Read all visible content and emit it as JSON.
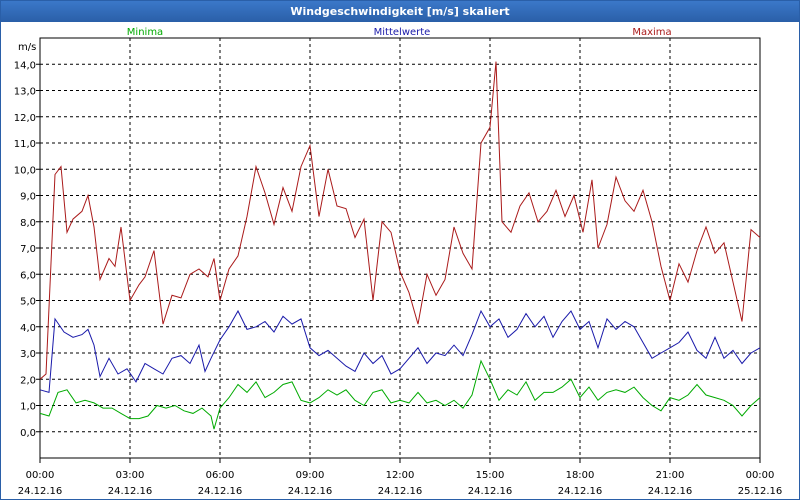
{
  "chart_data": {
    "type": "line",
    "title": "Windgeschwindigkeit [m/s] skaliert",
    "ylabel": "m/s",
    "ylim": [
      -1.0,
      15.0
    ],
    "yticks": [
      "0,0",
      "1,0",
      "2,0",
      "3,0",
      "4,0",
      "5,0",
      "6,0",
      "7,0",
      "8,0",
      "9,0",
      "10,0",
      "11,0",
      "12,0",
      "13,0",
      "14,0"
    ],
    "xlim": [
      0,
      24
    ],
    "xticks": [
      {
        "hours": 0,
        "time": "00:00",
        "date": "24.12.16"
      },
      {
        "hours": 3,
        "time": "03:00",
        "date": "24.12.16"
      },
      {
        "hours": 6,
        "time": "06:00",
        "date": "24.12.16"
      },
      {
        "hours": 9,
        "time": "09:00",
        "date": "24.12.16"
      },
      {
        "hours": 12,
        "time": "12:00",
        "date": "24.12.16"
      },
      {
        "hours": 15,
        "time": "15:00",
        "date": "24.12.16"
      },
      {
        "hours": 18,
        "time": "18:00",
        "date": "24.12.16"
      },
      {
        "hours": 21,
        "time": "21:00",
        "date": "24.12.16"
      },
      {
        "hours": 24,
        "time": "00:00",
        "date": "25.12.16"
      }
    ],
    "grid": true,
    "series": [
      {
        "name": "Minima",
        "color": "#00aa00",
        "points": [
          [
            0,
            0.7
          ],
          [
            0.3,
            0.6
          ],
          [
            0.6,
            1.5
          ],
          [
            0.9,
            1.6
          ],
          [
            1.2,
            1.1
          ],
          [
            1.5,
            1.2
          ],
          [
            1.8,
            1.1
          ],
          [
            2.1,
            0.9
          ],
          [
            2.4,
            0.9
          ],
          [
            2.7,
            0.7
          ],
          [
            3.0,
            0.5
          ],
          [
            3.3,
            0.5
          ],
          [
            3.6,
            0.6
          ],
          [
            3.9,
            1.0
          ],
          [
            4.2,
            0.9
          ],
          [
            4.5,
            1.0
          ],
          [
            4.8,
            0.8
          ],
          [
            5.1,
            0.7
          ],
          [
            5.4,
            0.9
          ],
          [
            5.7,
            0.6
          ],
          [
            5.8,
            0.1
          ],
          [
            6.0,
            0.9
          ],
          [
            6.3,
            1.3
          ],
          [
            6.6,
            1.8
          ],
          [
            6.9,
            1.5
          ],
          [
            7.2,
            1.9
          ],
          [
            7.5,
            1.3
          ],
          [
            7.8,
            1.5
          ],
          [
            8.1,
            1.8
          ],
          [
            8.4,
            1.9
          ],
          [
            8.7,
            1.2
          ],
          [
            9.0,
            1.1
          ],
          [
            9.3,
            1.3
          ],
          [
            9.6,
            1.6
          ],
          [
            9.9,
            1.4
          ],
          [
            10.2,
            1.6
          ],
          [
            10.5,
            1.2
          ],
          [
            10.8,
            1.0
          ],
          [
            11.1,
            1.5
          ],
          [
            11.4,
            1.6
          ],
          [
            11.7,
            1.1
          ],
          [
            12.0,
            1.2
          ],
          [
            12.3,
            1.1
          ],
          [
            12.6,
            1.5
          ],
          [
            12.9,
            1.1
          ],
          [
            13.2,
            1.2
          ],
          [
            13.5,
            1.0
          ],
          [
            13.8,
            1.2
          ],
          [
            14.1,
            0.9
          ],
          [
            14.4,
            1.4
          ],
          [
            14.7,
            2.7
          ],
          [
            15.0,
            2.0
          ],
          [
            15.3,
            1.2
          ],
          [
            15.6,
            1.6
          ],
          [
            15.9,
            1.4
          ],
          [
            16.2,
            1.9
          ],
          [
            16.5,
            1.2
          ],
          [
            16.8,
            1.5
          ],
          [
            17.1,
            1.5
          ],
          [
            17.4,
            1.7
          ],
          [
            17.7,
            2.0
          ],
          [
            18.0,
            1.3
          ],
          [
            18.3,
            1.7
          ],
          [
            18.6,
            1.2
          ],
          [
            18.9,
            1.5
          ],
          [
            19.2,
            1.6
          ],
          [
            19.5,
            1.5
          ],
          [
            19.8,
            1.7
          ],
          [
            20.1,
            1.3
          ],
          [
            20.4,
            1.0
          ],
          [
            20.7,
            0.8
          ],
          [
            21.0,
            1.3
          ],
          [
            21.3,
            1.2
          ],
          [
            21.6,
            1.4
          ],
          [
            21.9,
            1.8
          ],
          [
            22.2,
            1.4
          ],
          [
            22.5,
            1.3
          ],
          [
            22.8,
            1.2
          ],
          [
            23.1,
            1.0
          ],
          [
            23.4,
            0.6
          ],
          [
            23.7,
            1.0
          ],
          [
            24.0,
            1.3
          ]
        ]
      },
      {
        "name": "Mittelwerte",
        "color": "#1a1aaa",
        "points": [
          [
            0,
            1.6
          ],
          [
            0.3,
            1.5
          ],
          [
            0.5,
            4.3
          ],
          [
            0.8,
            3.8
          ],
          [
            1.1,
            3.6
          ],
          [
            1.4,
            3.7
          ],
          [
            1.6,
            3.9
          ],
          [
            1.8,
            3.3
          ],
          [
            2.0,
            2.1
          ],
          [
            2.3,
            2.8
          ],
          [
            2.6,
            2.2
          ],
          [
            2.9,
            2.4
          ],
          [
            3.2,
            1.9
          ],
          [
            3.5,
            2.6
          ],
          [
            3.8,
            2.4
          ],
          [
            4.1,
            2.2
          ],
          [
            4.4,
            2.8
          ],
          [
            4.7,
            2.9
          ],
          [
            5.0,
            2.6
          ],
          [
            5.3,
            3.3
          ],
          [
            5.5,
            2.3
          ],
          [
            5.7,
            2.8
          ],
          [
            6.0,
            3.5
          ],
          [
            6.3,
            4.0
          ],
          [
            6.6,
            4.6
          ],
          [
            6.9,
            3.9
          ],
          [
            7.2,
            4.0
          ],
          [
            7.5,
            4.2
          ],
          [
            7.8,
            3.8
          ],
          [
            8.1,
            4.4
          ],
          [
            8.4,
            4.1
          ],
          [
            8.7,
            4.3
          ],
          [
            9.0,
            3.2
          ],
          [
            9.3,
            2.9
          ],
          [
            9.6,
            3.1
          ],
          [
            9.9,
            2.8
          ],
          [
            10.2,
            2.5
          ],
          [
            10.5,
            2.3
          ],
          [
            10.8,
            3.0
          ],
          [
            11.1,
            2.6
          ],
          [
            11.4,
            2.9
          ],
          [
            11.7,
            2.2
          ],
          [
            12.0,
            2.4
          ],
          [
            12.3,
            2.8
          ],
          [
            12.6,
            3.2
          ],
          [
            12.9,
            2.6
          ],
          [
            13.2,
            3.0
          ],
          [
            13.5,
            2.9
          ],
          [
            13.8,
            3.3
          ],
          [
            14.1,
            2.9
          ],
          [
            14.4,
            3.7
          ],
          [
            14.7,
            4.6
          ],
          [
            15.0,
            4.0
          ],
          [
            15.3,
            4.3
          ],
          [
            15.6,
            3.6
          ],
          [
            15.9,
            3.9
          ],
          [
            16.2,
            4.5
          ],
          [
            16.5,
            4.0
          ],
          [
            16.8,
            4.4
          ],
          [
            17.1,
            3.6
          ],
          [
            17.4,
            4.2
          ],
          [
            17.7,
            4.6
          ],
          [
            18.0,
            3.9
          ],
          [
            18.3,
            4.2
          ],
          [
            18.6,
            3.2
          ],
          [
            18.9,
            4.3
          ],
          [
            19.2,
            3.9
          ],
          [
            19.5,
            4.2
          ],
          [
            19.8,
            4.0
          ],
          [
            20.1,
            3.4
          ],
          [
            20.4,
            2.8
          ],
          [
            20.7,
            3.0
          ],
          [
            21.0,
            3.2
          ],
          [
            21.3,
            3.4
          ],
          [
            21.6,
            3.8
          ],
          [
            21.9,
            3.1
          ],
          [
            22.2,
            2.8
          ],
          [
            22.5,
            3.6
          ],
          [
            22.8,
            2.8
          ],
          [
            23.1,
            3.1
          ],
          [
            23.4,
            2.6
          ],
          [
            23.7,
            3.0
          ],
          [
            24.0,
            3.2
          ]
        ]
      },
      {
        "name": "Maxima",
        "color": "#aa1a1a",
        "points": [
          [
            0,
            2.0
          ],
          [
            0.2,
            2.2
          ],
          [
            0.5,
            9.8
          ],
          [
            0.7,
            10.1
          ],
          [
            0.9,
            7.6
          ],
          [
            1.1,
            8.1
          ],
          [
            1.4,
            8.4
          ],
          [
            1.6,
            9.0
          ],
          [
            1.8,
            7.8
          ],
          [
            2.0,
            5.8
          ],
          [
            2.3,
            6.6
          ],
          [
            2.5,
            6.3
          ],
          [
            2.7,
            7.8
          ],
          [
            3.0,
            5.0
          ],
          [
            3.3,
            5.6
          ],
          [
            3.5,
            5.9
          ],
          [
            3.8,
            6.9
          ],
          [
            4.1,
            4.1
          ],
          [
            4.4,
            5.2
          ],
          [
            4.7,
            5.1
          ],
          [
            5.0,
            6.0
          ],
          [
            5.3,
            6.2
          ],
          [
            5.6,
            5.9
          ],
          [
            5.8,
            6.6
          ],
          [
            6.0,
            5.0
          ],
          [
            6.3,
            6.2
          ],
          [
            6.6,
            6.7
          ],
          [
            6.9,
            8.2
          ],
          [
            7.2,
            10.1
          ],
          [
            7.5,
            9.1
          ],
          [
            7.8,
            7.9
          ],
          [
            8.1,
            9.3
          ],
          [
            8.4,
            8.4
          ],
          [
            8.7,
            10.1
          ],
          [
            9.0,
            10.9
          ],
          [
            9.3,
            8.2
          ],
          [
            9.6,
            10.0
          ],
          [
            9.9,
            8.6
          ],
          [
            10.2,
            8.5
          ],
          [
            10.5,
            7.4
          ],
          [
            10.8,
            8.1
          ],
          [
            11.1,
            5.0
          ],
          [
            11.4,
            8.0
          ],
          [
            11.7,
            7.6
          ],
          [
            12.0,
            6.1
          ],
          [
            12.3,
            5.3
          ],
          [
            12.6,
            4.1
          ],
          [
            12.9,
            6.0
          ],
          [
            13.2,
            5.2
          ],
          [
            13.5,
            5.8
          ],
          [
            13.8,
            7.8
          ],
          [
            14.1,
            6.8
          ],
          [
            14.4,
            6.2
          ],
          [
            14.7,
            11.0
          ],
          [
            15.0,
            11.6
          ],
          [
            15.2,
            14.1
          ],
          [
            15.4,
            8.0
          ],
          [
            15.7,
            7.6
          ],
          [
            16.0,
            8.6
          ],
          [
            16.3,
            9.1
          ],
          [
            16.6,
            8.0
          ],
          [
            16.9,
            8.4
          ],
          [
            17.2,
            9.2
          ],
          [
            17.5,
            8.2
          ],
          [
            17.8,
            9.0
          ],
          [
            18.1,
            7.6
          ],
          [
            18.4,
            9.6
          ],
          [
            18.6,
            7.0
          ],
          [
            18.9,
            7.9
          ],
          [
            19.2,
            9.7
          ],
          [
            19.5,
            8.8
          ],
          [
            19.8,
            8.4
          ],
          [
            20.1,
            9.2
          ],
          [
            20.4,
            8.0
          ],
          [
            20.7,
            6.3
          ],
          [
            21.0,
            5.0
          ],
          [
            21.3,
            6.4
          ],
          [
            21.6,
            5.7
          ],
          [
            21.9,
            6.9
          ],
          [
            22.2,
            7.8
          ],
          [
            22.5,
            6.8
          ],
          [
            22.8,
            7.2
          ],
          [
            23.1,
            5.7
          ],
          [
            23.4,
            4.2
          ],
          [
            23.7,
            7.7
          ],
          [
            24.0,
            7.4
          ]
        ]
      }
    ]
  }
}
